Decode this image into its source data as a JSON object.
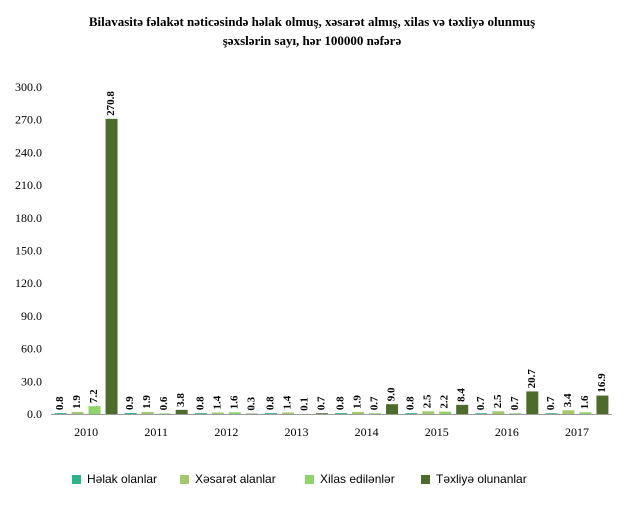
{
  "title": {
    "line1": "Bilavasitə fəlakət nəticəsində həlak olmuş, xəsarət almış, xilas və təxliyə olunmuş",
    "line2": "şəxslərin sayı, hər 100000 nəfərə"
  },
  "chart_data": {
    "type": "bar",
    "categories": [
      "2010",
      "2011",
      "2012",
      "2013",
      "2014",
      "2015",
      "2016",
      "2017"
    ],
    "series": [
      {
        "name": "Həlak olanlar",
        "color": "#2bb38a",
        "values": [
          0.8,
          0.9,
          0.8,
          0.8,
          0.8,
          0.8,
          0.7,
          0.7
        ]
      },
      {
        "name": "Xəsarət alanlar",
        "color": "#a3c86d",
        "values": [
          1.9,
          1.9,
          1.4,
          1.4,
          1.9,
          2.5,
          2.5,
          3.4
        ]
      },
      {
        "name": "Xilas edilənlər",
        "color": "#8fd46a",
        "values": [
          7.2,
          0.6,
          1.6,
          0.1,
          0.7,
          2.2,
          0.7,
          1.6
        ]
      },
      {
        "name": "Təxliyə olunanlar",
        "color": "#4d6b2b",
        "values": [
          270.8,
          3.8,
          0.3,
          0.7,
          9.0,
          8.4,
          20.7,
          16.9
        ]
      }
    ],
    "yticks": [
      "0.0",
      "30.0",
      "60.0",
      "90.0",
      "120.0",
      "150.0",
      "180.0",
      "210.0",
      "240.0",
      "270.0",
      "300.0"
    ],
    "ylim": [
      0,
      300
    ],
    "grid": false,
    "legend_position": "bottom",
    "data_labels": true,
    "xlabel": "",
    "ylabel": ""
  }
}
